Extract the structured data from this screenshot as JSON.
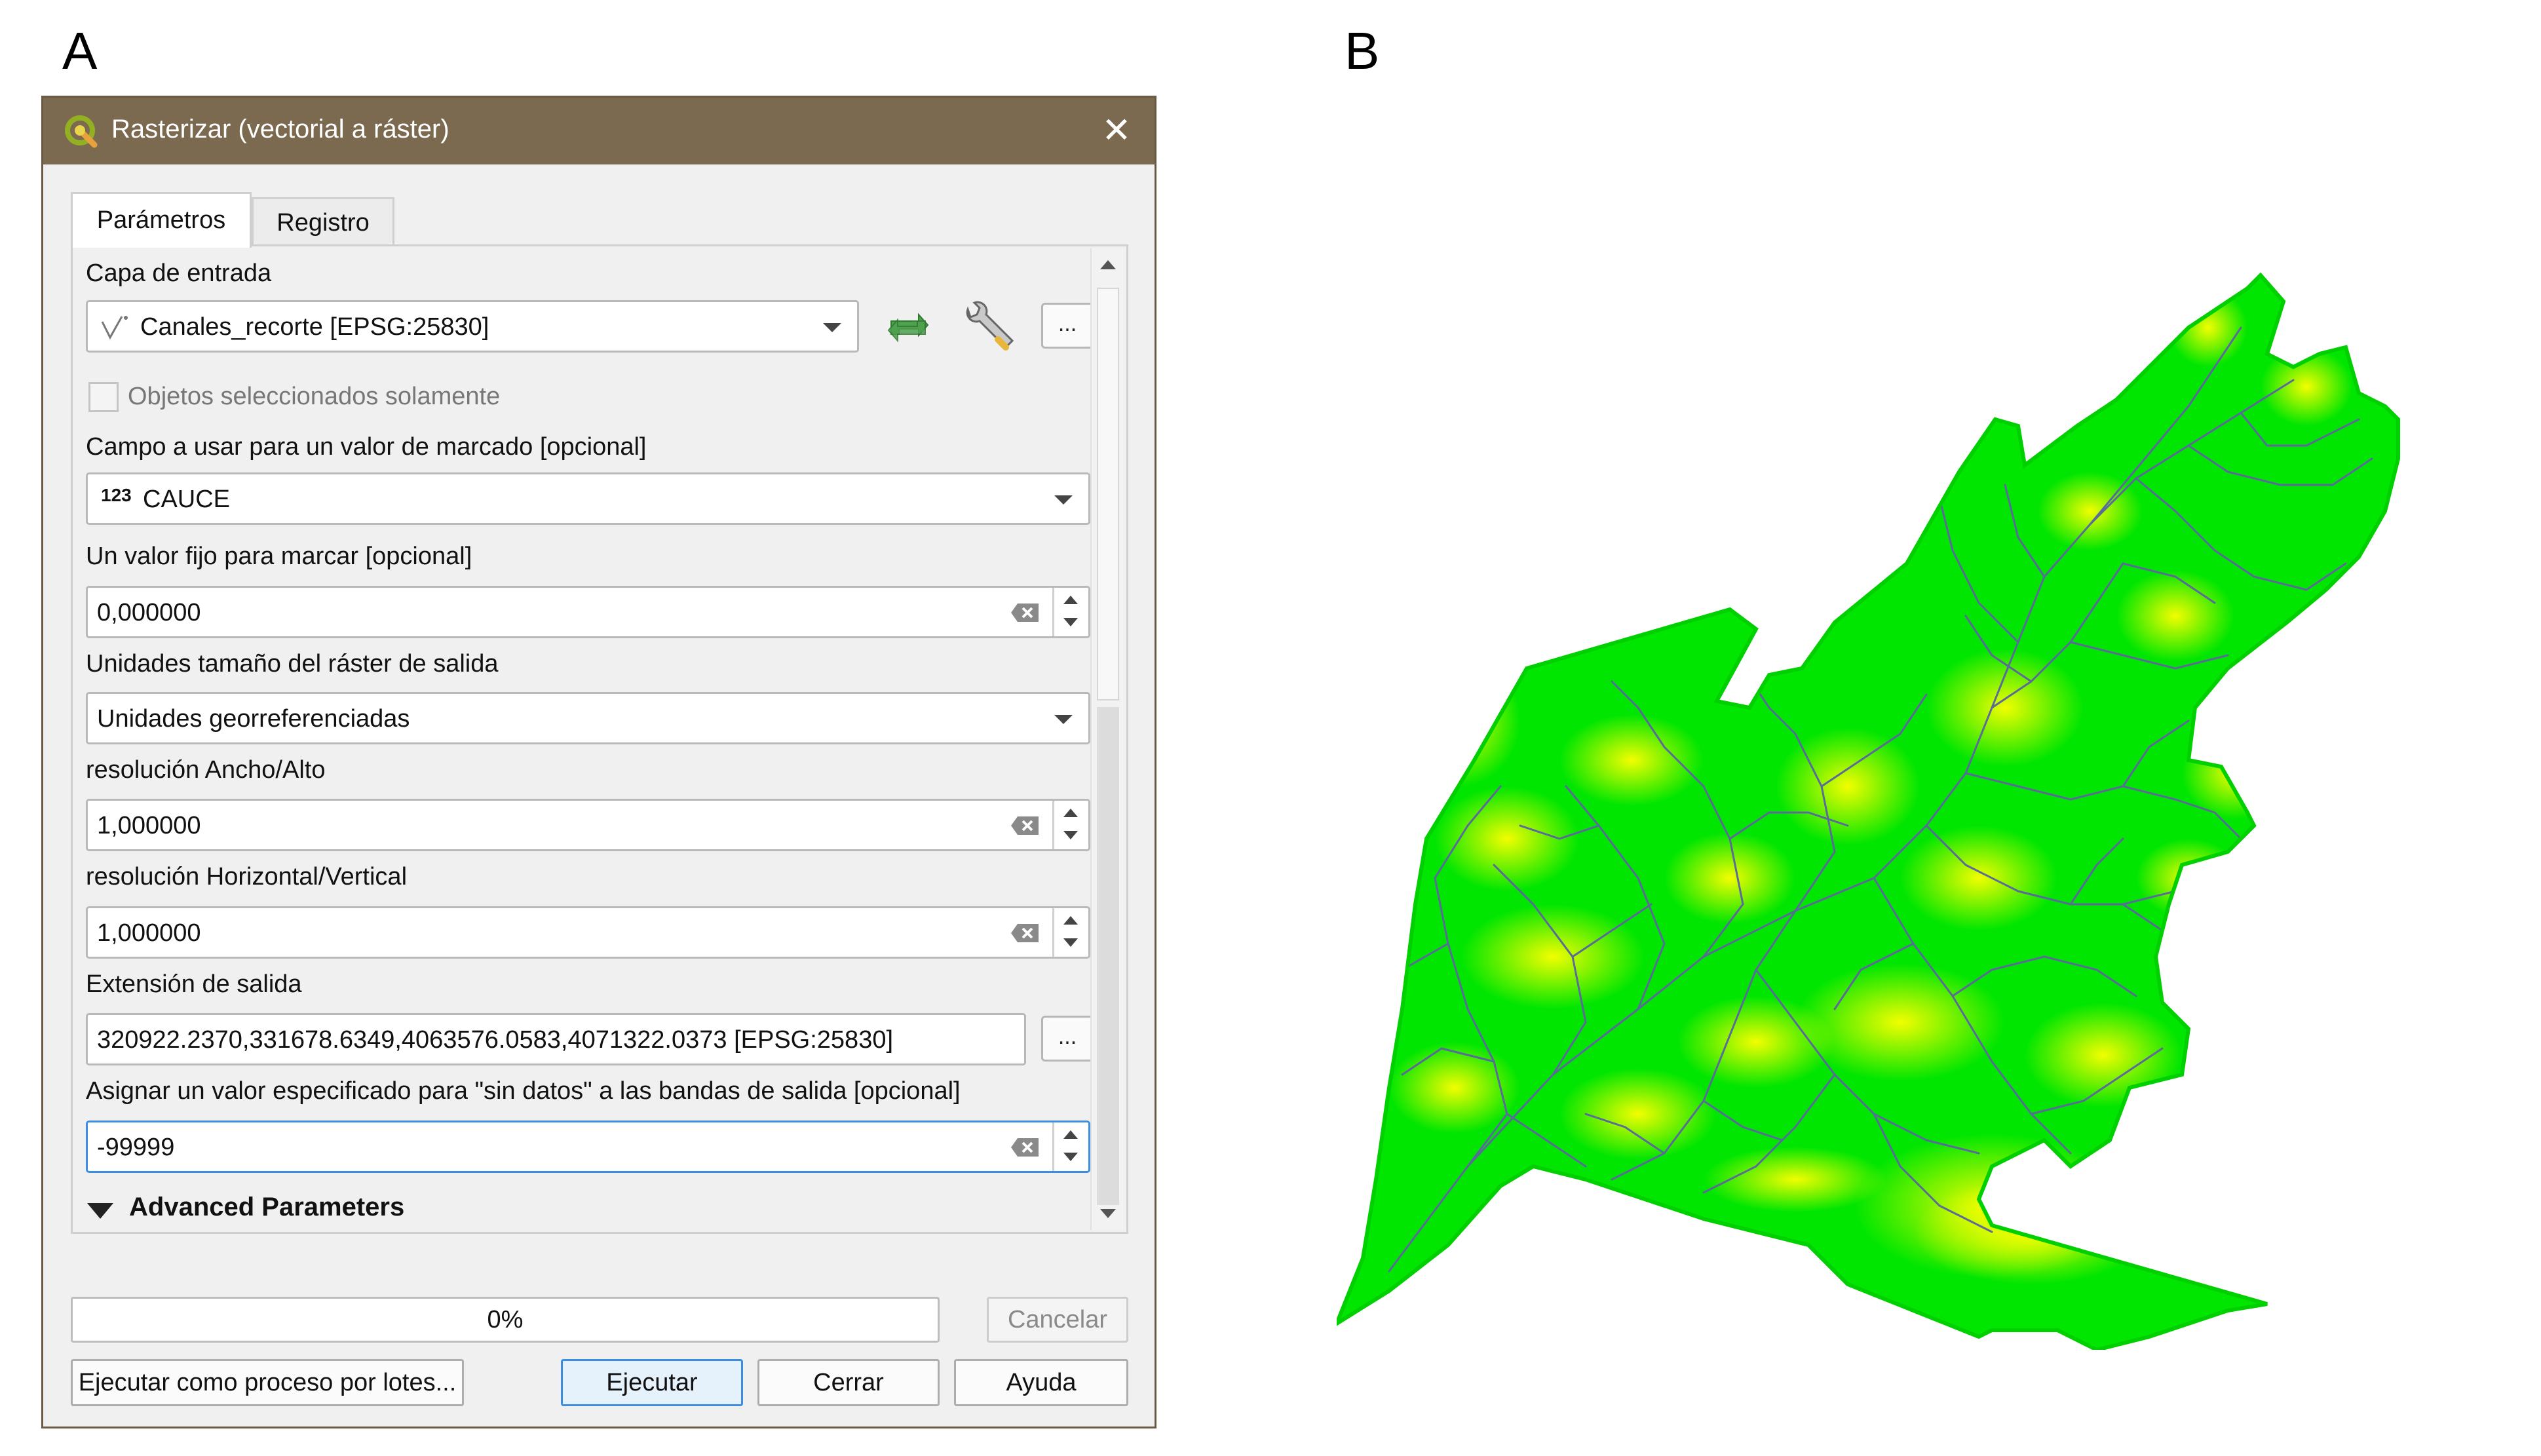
{
  "panel_labels": {
    "a": "A",
    "b": "B"
  },
  "dialog": {
    "title": "Rasterizar (vectorial a ráster)",
    "close_glyph": "✕",
    "tabs": [
      {
        "label": "Parámetros",
        "active": true
      },
      {
        "label": "Registro",
        "active": false
      }
    ],
    "params": {
      "input_layer_label": "Capa de entrada",
      "input_layer_value": "Canales_recorte [EPSG:25830]",
      "selected_only_label": "Objetos seleccionados solamente",
      "field_label": "Campo a usar para un valor de marcado [opcional]",
      "field_type_prefix": "123",
      "field_value": "CAUCE",
      "fixed_value_label": "Un valor fijo para marcar [opcional]",
      "fixed_value": "0,000000",
      "units_label": "Unidades tamaño del ráster de salida",
      "units_value": "Unidades georreferenciadas",
      "res_wh_label": "resolución Ancho/Alto",
      "res_wh_value": "1,000000",
      "res_hv_label": "resolución Horizontal/Vertical",
      "res_hv_value": "1,000000",
      "extent_label": "Extensión de salida",
      "extent_value": "320922.2370,331678.6349,4063576.0583,4071322.0373 [EPSG:25830]",
      "nodata_label": "Asignar un valor especificado para \"sin datos\" a las bandas de salida [opcional]",
      "nodata_value": "-99999",
      "advanced_label": "Advanced Parameters",
      "ellipsis": "..."
    },
    "progress": {
      "text": "0%",
      "value": 0
    },
    "buttons": {
      "cancel": "Cancelar",
      "batch": "Ejecutar como proceso por lotes...",
      "run": "Ejecutar",
      "close": "Cerrar",
      "help": "Ayuda"
    }
  },
  "map": {
    "fill_high": "#ffff00",
    "fill_low": "#00e600",
    "stream_color": "#5a6a9a"
  }
}
